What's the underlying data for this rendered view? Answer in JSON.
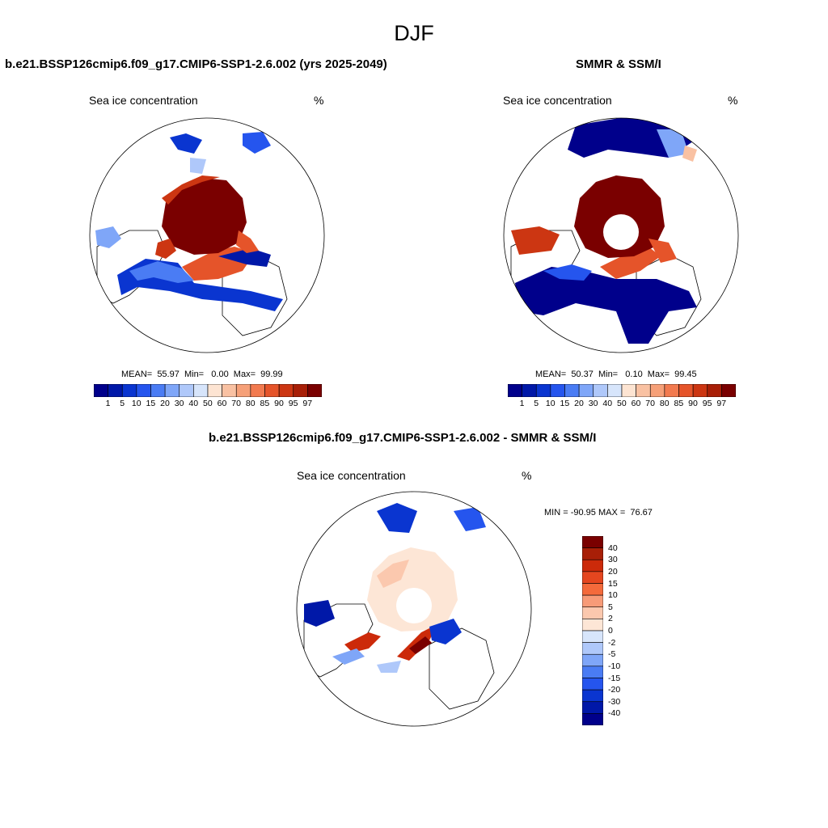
{
  "title": "DJF",
  "panel_left": {
    "title": "b.e21.BSSP126cmip6.f09_g17.CMIP6-SSP1-2.6.002 (yrs 2025-2049)",
    "subtitle": "Sea ice concentration",
    "units": "%",
    "stats": "MEAN=  55.97  Min=   0.00  Max=  99.99",
    "colorbar_labels": [
      "1",
      "5",
      "10",
      "15",
      "20",
      "30",
      "40",
      "50",
      "60",
      "70",
      "80",
      "85",
      "90",
      "95",
      "97"
    ]
  },
  "panel_right": {
    "title": "SMMR & SSM/I",
    "subtitle": "Sea ice concentration",
    "units": "%",
    "stats": "MEAN=  50.37  Min=   0.10  Max=  99.45",
    "colorbar_labels": [
      "1",
      "5",
      "10",
      "15",
      "20",
      "30",
      "40",
      "50",
      "60",
      "70",
      "80",
      "85",
      "90",
      "95",
      "97"
    ]
  },
  "panel_diff": {
    "title": "b.e21.BSSP126cmip6.f09_g17.CMIP6-SSP1-2.6.002 - SMMR & SSM/I",
    "subtitle": "Sea ice concentration",
    "units": "%",
    "stats": "MIN = -90.95 MAX =  76.67",
    "colorbar_labels": [
      "40",
      "30",
      "20",
      "15",
      "10",
      "5",
      "2",
      "0",
      "-2",
      "-5",
      "-10",
      "-15",
      "-20",
      "-30",
      "-40"
    ]
  },
  "colors": {
    "seq": [
      "#00008b",
      "#0018a8",
      "#0a35d0",
      "#2555ee",
      "#4a7cf4",
      "#7fa6f8",
      "#afc8fa",
      "#d7e5fb",
      "#fde4d2",
      "#f9c1a2",
      "#f6a078",
      "#f27a4f",
      "#e5542a",
      "#cc3612",
      "#a81f07",
      "#7a0000"
    ],
    "div": [
      "#7a0000",
      "#a81f07",
      "#cc2a0a",
      "#e5461f",
      "#f46a3b",
      "#f79b78",
      "#fbc8ae",
      "#fde6d6",
      "#d7e5fb",
      "#afc8fa",
      "#7fa6f8",
      "#4a7cf4",
      "#2555ee",
      "#0a35d0",
      "#0018a8",
      "#00008b"
    ]
  }
}
